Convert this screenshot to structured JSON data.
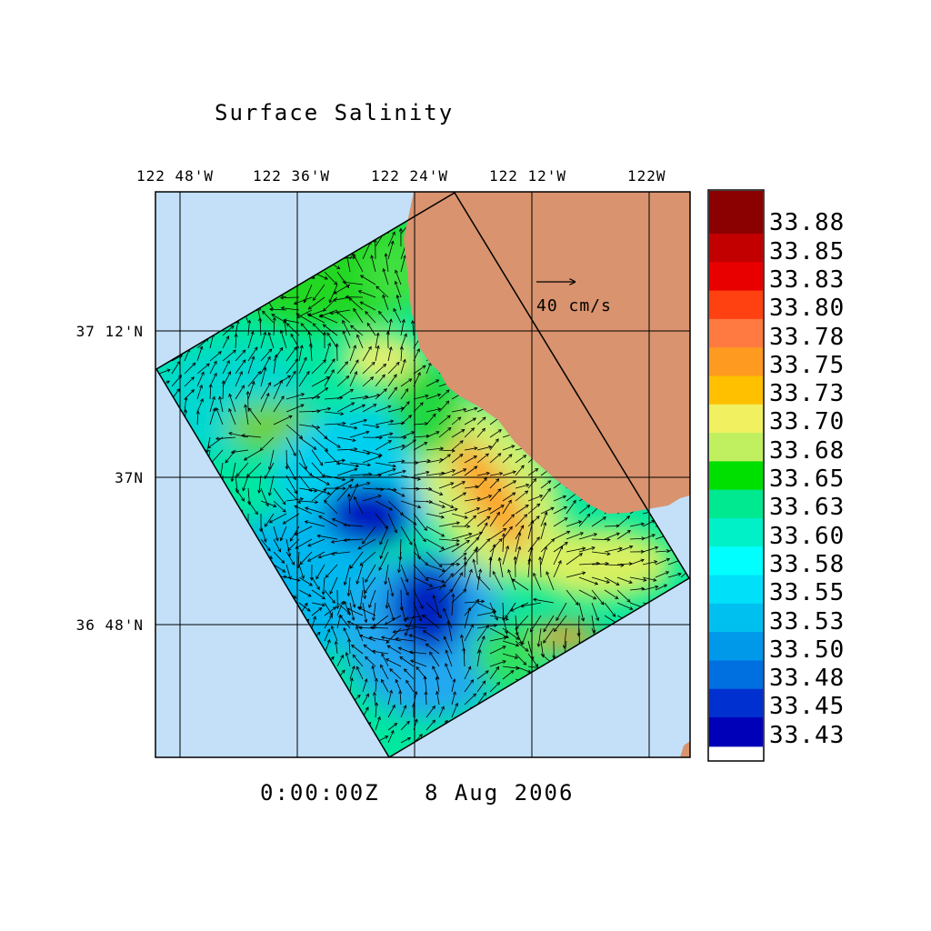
{
  "title": "Surface Salinity",
  "timestamp": "0:00:00Z   8 Aug 2006",
  "lon_labels": [
    "122 48'W",
    "122 36'W",
    "122 24'W",
    "122 12'W",
    "122W"
  ],
  "lat_labels": [
    "37 12'N",
    "37N",
    "36 48'N"
  ],
  "velocity_scale": "40 cm/s",
  "colors": {
    "ocean": "#c3e0f8",
    "land": "#d9936e",
    "frame": "#000000"
  },
  "colorbar": {
    "levels": [
      "33.88",
      "33.85",
      "33.83",
      "33.80",
      "33.78",
      "33.75",
      "33.73",
      "33.70",
      "33.68",
      "33.65",
      "33.63",
      "33.60",
      "33.58",
      "33.55",
      "33.53",
      "33.50",
      "33.48",
      "33.45",
      "33.43"
    ],
    "colors": [
      "#8b0000",
      "#c20000",
      "#e80000",
      "#ff4010",
      "#ff7a40",
      "#ff9a20",
      "#ffc000",
      "#f0f060",
      "#c0f060",
      "#00e000",
      "#00e890",
      "#00f0c8",
      "#00ffff",
      "#00e0f8",
      "#00c0f0",
      "#0098e8",
      "#0070e0",
      "#0030d0",
      "#0000b8"
    ]
  }
}
